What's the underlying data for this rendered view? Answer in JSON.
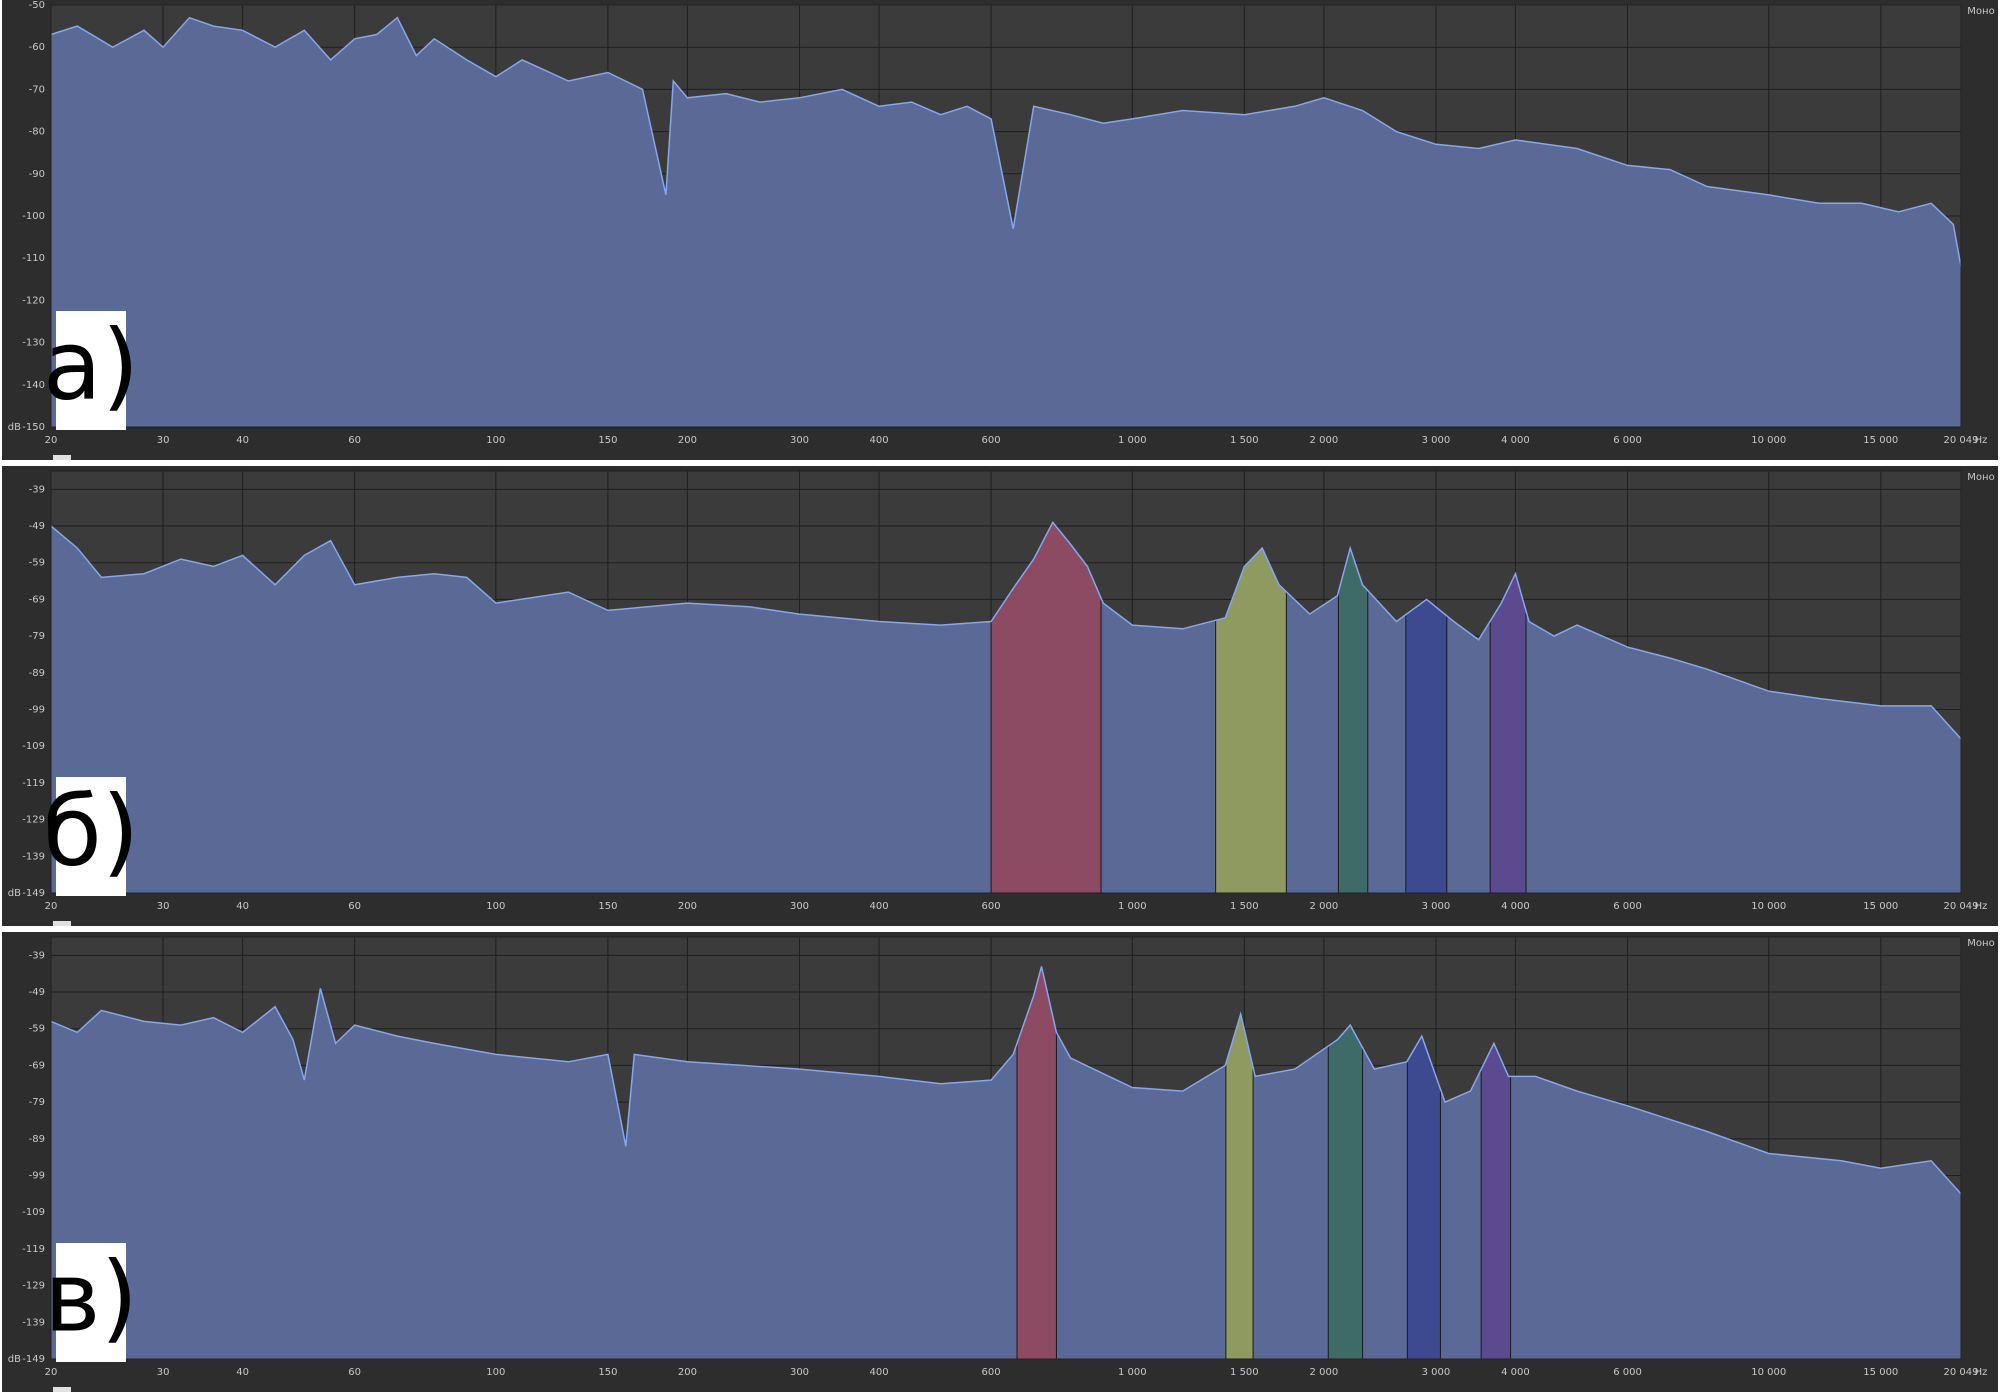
{
  "chart_data": [
    {
      "type": "area",
      "panel_label": "а)",
      "channel": "Моно",
      "x_unit": "Hz",
      "y_label": "dB",
      "x_scale": "log",
      "grid": true,
      "color": "#86a6f0",
      "fill_color": "#5a6996",
      "xlim": [
        20,
        20049
      ],
      "ylim": [
        -150,
        -50
      ],
      "xticks": [
        20,
        30,
        40,
        60,
        100,
        150,
        200,
        300,
        400,
        600,
        {
          "value": 1000,
          "label": "1 000"
        },
        {
          "value": 1500,
          "label": "1 500"
        },
        {
          "value": 2000,
          "label": "2 000"
        },
        {
          "value": 3000,
          "label": "3 000"
        },
        {
          "value": 4000,
          "label": "4 000"
        },
        {
          "value": 6000,
          "label": "6 000"
        },
        {
          "value": 10000,
          "label": "10 000"
        },
        {
          "value": 15000,
          "label": "15 000"
        },
        {
          "value": 20049,
          "label": "20 049"
        }
      ],
      "yticks": [
        -50,
        -60,
        -70,
        -80,
        -90,
        -100,
        -110,
        -120,
        -130,
        -140,
        -150
      ],
      "x": [
        20,
        22,
        25,
        28,
        30,
        33,
        36,
        40,
        45,
        50,
        55,
        60,
        65,
        70,
        75,
        80,
        90,
        100,
        110,
        130,
        150,
        170,
        185,
        190,
        200,
        230,
        260,
        300,
        350,
        400,
        450,
        500,
        550,
        600,
        650,
        700,
        800,
        900,
        1000,
        1200,
        1500,
        1800,
        2000,
        2300,
        2600,
        3000,
        3500,
        4000,
        5000,
        6000,
        7000,
        8000,
        10000,
        12000,
        14000,
        16000,
        18000,
        19500,
        20049
      ],
      "values": [
        -57,
        -55,
        -60,
        -56,
        -60,
        -53,
        -55,
        -56,
        -60,
        -56,
        -63,
        -58,
        -57,
        -53,
        -62,
        -58,
        -63,
        -67,
        -63,
        -68,
        -66,
        -70,
        -95,
        -68,
        -72,
        -71,
        -73,
        -72,
        -70,
        -74,
        -73,
        -76,
        -74,
        -77,
        -103,
        -74,
        -76,
        -78,
        -77,
        -75,
        -76,
        -74,
        -72,
        -75,
        -80,
        -83,
        -84,
        -82,
        -84,
        -88,
        -89,
        -93,
        -95,
        -97,
        -97,
        -99,
        -97,
        -102,
        -112
      ]
    },
    {
      "type": "area",
      "panel_label": "б)",
      "channel": "Моно",
      "x_unit": "Hz",
      "y_label": "dB",
      "x_scale": "log",
      "grid": true,
      "color": "#86a6f0",
      "fill_color": "#5a6996",
      "xlim": [
        20,
        20049
      ],
      "ylim": [
        -149,
        -34
      ],
      "xticks": [
        20,
        30,
        40,
        60,
        100,
        150,
        200,
        300,
        400,
        600,
        {
          "value": 1000,
          "label": "1 000"
        },
        {
          "value": 1500,
          "label": "1 500"
        },
        {
          "value": 2000,
          "label": "2 000"
        },
        {
          "value": 3000,
          "label": "3 000"
        },
        {
          "value": 4000,
          "label": "4 000"
        },
        {
          "value": 6000,
          "label": "6 000"
        },
        {
          "value": 10000,
          "label": "10 000"
        },
        {
          "value": 15000,
          "label": "15 000"
        },
        {
          "value": 20049,
          "label": "20 049"
        }
      ],
      "yticks": [
        -39,
        -49,
        -59,
        -69,
        -79,
        -89,
        -99,
        -109,
        -119,
        -129,
        -139,
        -149
      ],
      "bands": [
        {
          "range": [
            600,
            893
          ],
          "color": "#8d4a63"
        },
        {
          "range": [
            1352,
            1746
          ],
          "color": "#8f9a60"
        },
        {
          "range": [
            2108,
            2344
          ],
          "color": "#3e6b68"
        },
        {
          "range": [
            2690,
            3120
          ],
          "color": "#3d4a8f"
        },
        {
          "range": [
            3650,
            4155
          ],
          "color": "#5b4a8e"
        }
      ],
      "x": [
        20,
        22,
        24,
        28,
        32,
        36,
        40,
        45,
        50,
        55,
        60,
        70,
        80,
        90,
        100,
        130,
        150,
        200,
        250,
        300,
        400,
        500,
        600,
        650,
        700,
        750,
        800,
        850,
        900,
        1000,
        1200,
        1400,
        1500,
        1600,
        1700,
        1900,
        2100,
        2200,
        2300,
        2600,
        2900,
        3200,
        3500,
        3800,
        4000,
        4200,
        4600,
        5000,
        6000,
        7000,
        8000,
        10000,
        12000,
        15000,
        18000,
        20049
      ],
      "values": [
        -49,
        -55,
        -63,
        -62,
        -58,
        -60,
        -57,
        -65,
        -57,
        -53,
        -65,
        -63,
        -62,
        -63,
        -70,
        -67,
        -72,
        -70,
        -71,
        -73,
        -75,
        -76,
        -75,
        -66,
        -58,
        -48,
        -54,
        -60,
        -70,
        -76,
        -77,
        -74,
        -60,
        -55,
        -65,
        -73,
        -68,
        -55,
        -65,
        -75,
        -69,
        -75,
        -80,
        -70,
        -62,
        -75,
        -79,
        -76,
        -82,
        -85,
        -88,
        -94,
        -96,
        -98,
        -98,
        -107
      ]
    },
    {
      "type": "area",
      "panel_label": "в)",
      "channel": "Моно",
      "x_unit": "Hz",
      "y_label": "dB",
      "x_scale": "log",
      "grid": true,
      "color": "#86a6f0",
      "fill_color": "#5a6996",
      "xlim": [
        20,
        20049
      ],
      "ylim": [
        -149,
        -34
      ],
      "xticks": [
        20,
        30,
        40,
        60,
        100,
        150,
        200,
        300,
        400,
        600,
        {
          "value": 1000,
          "label": "1 000"
        },
        {
          "value": 1500,
          "label": "1 500"
        },
        {
          "value": 2000,
          "label": "2 000"
        },
        {
          "value": 3000,
          "label": "3 000"
        },
        {
          "value": 4000,
          "label": "4 000"
        },
        {
          "value": 6000,
          "label": "6 000"
        },
        {
          "value": 10000,
          "label": "10 000"
        },
        {
          "value": 15000,
          "label": "15 000"
        },
        {
          "value": 20049,
          "label": "20 049"
        }
      ],
      "yticks": [
        -39,
        -49,
        -59,
        -69,
        -79,
        -89,
        -99,
        -109,
        -119,
        -129,
        -139,
        -149
      ],
      "bands": [
        {
          "range": [
            659,
            760
          ],
          "color": "#8d4a63"
        },
        {
          "range": [
            1403,
            1548
          ],
          "color": "#8f9a60"
        },
        {
          "range": [
            2032,
            2301
          ],
          "color": "#3e6b68"
        },
        {
          "range": [
            2705,
            3049
          ],
          "color": "#3d4a8f"
        },
        {
          "range": [
            3533,
            3930
          ],
          "color": "#5b4a8e"
        }
      ],
      "x": [
        20,
        22,
        24,
        28,
        32,
        36,
        40,
        45,
        48,
        50,
        53,
        56,
        60,
        70,
        80,
        100,
        130,
        150,
        160,
        165,
        200,
        300,
        400,
        500,
        600,
        650,
        700,
        720,
        760,
        800,
        1000,
        1200,
        1400,
        1480,
        1560,
        1800,
        2100,
        2200,
        2400,
        2700,
        2850,
        3100,
        3400,
        3700,
        3900,
        4300,
        5000,
        6000,
        8000,
        10000,
        13000,
        15000,
        18000,
        20049
      ],
      "values": [
        -57,
        -60,
        -54,
        -57,
        -58,
        -56,
        -60,
        -53,
        -62,
        -73,
        -48,
        -63,
        -58,
        -61,
        -63,
        -66,
        -68,
        -66,
        -91,
        -66,
        -68,
        -70,
        -72,
        -74,
        -73,
        -66,
        -50,
        -42,
        -60,
        -67,
        -75,
        -76,
        -69,
        -55,
        -72,
        -70,
        -62,
        -58,
        -70,
        -68,
        -61,
        -79,
        -76,
        -63,
        -72,
        -72,
        -76,
        -80,
        -87,
        -93,
        -95,
        -97,
        -95,
        -104
      ]
    }
  ]
}
